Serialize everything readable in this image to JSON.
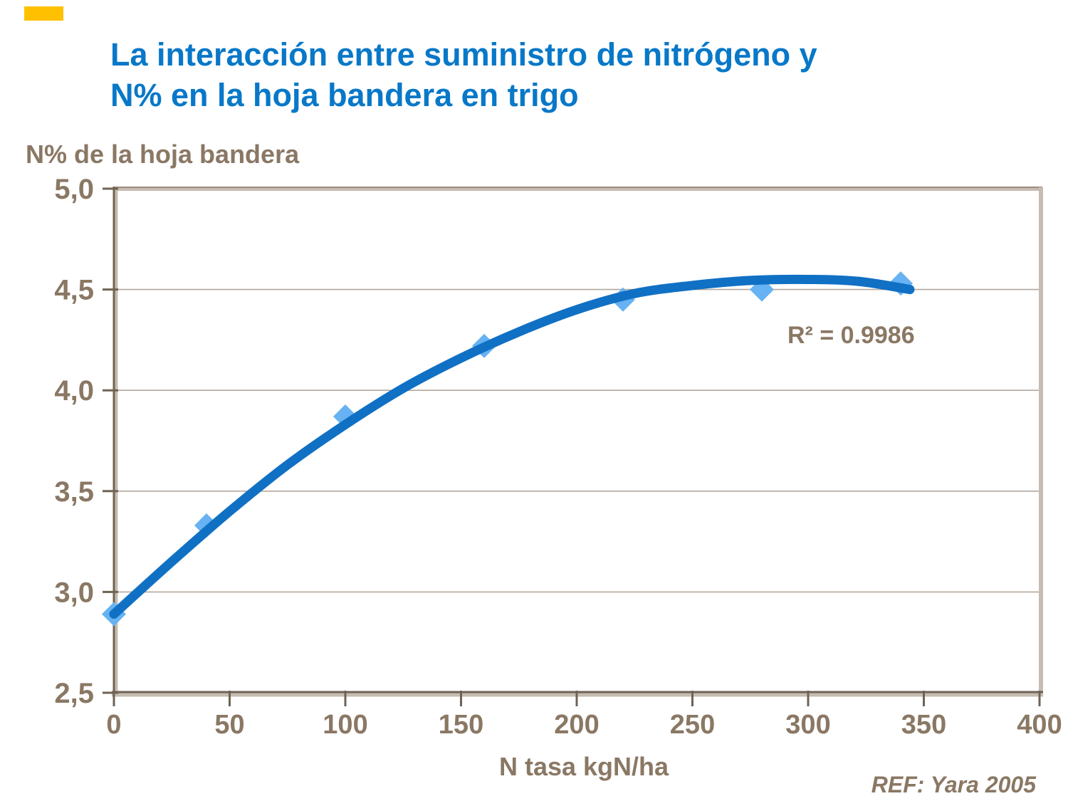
{
  "slide": {
    "title_line1": "La interacción entre suministro de nitrógeno y",
    "title_line2": "N% en la hoja bandera en trigo",
    "reference": "REF: Yara 2005"
  },
  "chart_data": {
    "type": "scatter",
    "title": "",
    "y_axis_title": "N% de la hoja bandera",
    "x_axis_title": "N tasa kgN/ha",
    "annotation": "R² = 0.9986",
    "xlim": [
      0,
      400
    ],
    "ylim": [
      2.5,
      5.0
    ],
    "grid": "horizontal",
    "x_ticks": [
      {
        "label": "0",
        "value": 0
      },
      {
        "label": "50",
        "value": 50
      },
      {
        "label": "100",
        "value": 100
      },
      {
        "label": "150",
        "value": 150
      },
      {
        "label": "200",
        "value": 200
      },
      {
        "label": "250",
        "value": 250
      },
      {
        "label": "300",
        "value": 300
      },
      {
        "label": "350",
        "value": 350
      },
      {
        "label": "400",
        "value": 400
      }
    ],
    "y_ticks": [
      {
        "label": "5,0",
        "value": 5.0
      },
      {
        "label": "4,5",
        "value": 4.5
      },
      {
        "label": "4,0",
        "value": 4.0
      },
      {
        "label": "3,5",
        "value": 3.5
      },
      {
        "label": "3,0",
        "value": 3.0
      },
      {
        "label": "2,5",
        "value": 2.5
      }
    ],
    "series": [
      {
        "name": "observed-points",
        "kind": "scatter",
        "marker": "diamond",
        "x": [
          0,
          40,
          100,
          160,
          220,
          280,
          340
        ],
        "y": [
          2.89,
          3.33,
          3.87,
          4.22,
          4.45,
          4.5,
          4.53
        ]
      },
      {
        "name": "polynomial-trendline",
        "kind": "line",
        "points": [
          [
            0,
            2.89
          ],
          [
            25,
            3.15
          ],
          [
            50,
            3.4
          ],
          [
            75,
            3.63
          ],
          [
            100,
            3.83
          ],
          [
            125,
            4.01
          ],
          [
            150,
            4.16
          ],
          [
            175,
            4.29
          ],
          [
            200,
            4.4
          ],
          [
            225,
            4.48
          ],
          [
            250,
            4.52
          ],
          [
            275,
            4.545
          ],
          [
            300,
            4.55
          ],
          [
            322,
            4.54
          ],
          [
            344,
            4.5
          ]
        ]
      }
    ],
    "colors": {
      "curve": "#1070C4",
      "marker": "#66B2F2",
      "grid": "#B3A89D",
      "axis_dark": "#6F6354",
      "axis_light": "#C6BCB1",
      "tick_text": "#8A7864",
      "title": "#0878C8",
      "accent_bar": "#FFC000",
      "annotation_text": "#8A7864"
    }
  }
}
